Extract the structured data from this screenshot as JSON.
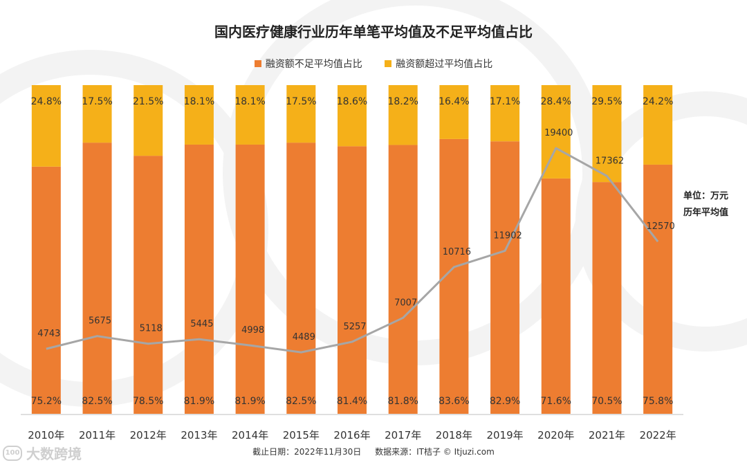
{
  "chart_data": {
    "type": "bar",
    "stacked": true,
    "title": "国内医疗健康行业历年单笔平均值及不足平均值占比",
    "categories": [
      "2010年",
      "2011年",
      "2012年",
      "2013年",
      "2014年",
      "2015年",
      "2016年",
      "2017年",
      "2018年",
      "2019年",
      "2020年",
      "2021年",
      "2022年"
    ],
    "series": [
      {
        "name": "融资额不足平均值占比",
        "color": "#ED7D31",
        "values": [
          75.2,
          82.5,
          78.5,
          81.9,
          81.9,
          82.5,
          81.4,
          81.8,
          83.6,
          82.9,
          71.6,
          70.5,
          75.8
        ],
        "labels": [
          "75.2%",
          "82.5%",
          "78.5%",
          "81.9%",
          "81.9%",
          "82.5%",
          "81.4%",
          "81.8%",
          "83.6%",
          "82.9%",
          "71.6%",
          "70.5%",
          "75.8%"
        ]
      },
      {
        "name": "融资额超过平均值占比",
        "color": "#F5B019",
        "values": [
          24.8,
          17.5,
          21.5,
          18.1,
          18.1,
          17.5,
          18.6,
          18.2,
          16.4,
          17.1,
          28.4,
          29.5,
          24.2
        ],
        "labels": [
          "24.8%",
          "17.5%",
          "21.5%",
          "18.1%",
          "18.1%",
          "17.5%",
          "18.6%",
          "18.2%",
          "16.4%",
          "17.1%",
          "28.4%",
          "29.5%",
          "24.2%"
        ]
      }
    ],
    "line": {
      "name": "历年平均值",
      "unit": "万元",
      "color": "#A6A6A6",
      "values": [
        4743,
        5675,
        5118,
        5445,
        4998,
        4489,
        5257,
        7007,
        10716,
        11902,
        19400,
        17362,
        12570
      ],
      "ylim": [
        0,
        24000
      ]
    },
    "ylim": [
      0,
      100
    ]
  },
  "side_note": {
    "line1": "单位：万元",
    "line2": "历年平均值"
  },
  "footer": {
    "date": "截止日期：2022年11月30日",
    "source": "数据来源：IT桔子 © Itjuzi.com"
  },
  "brand": {
    "icon": "100",
    "name": "大数跨境"
  }
}
